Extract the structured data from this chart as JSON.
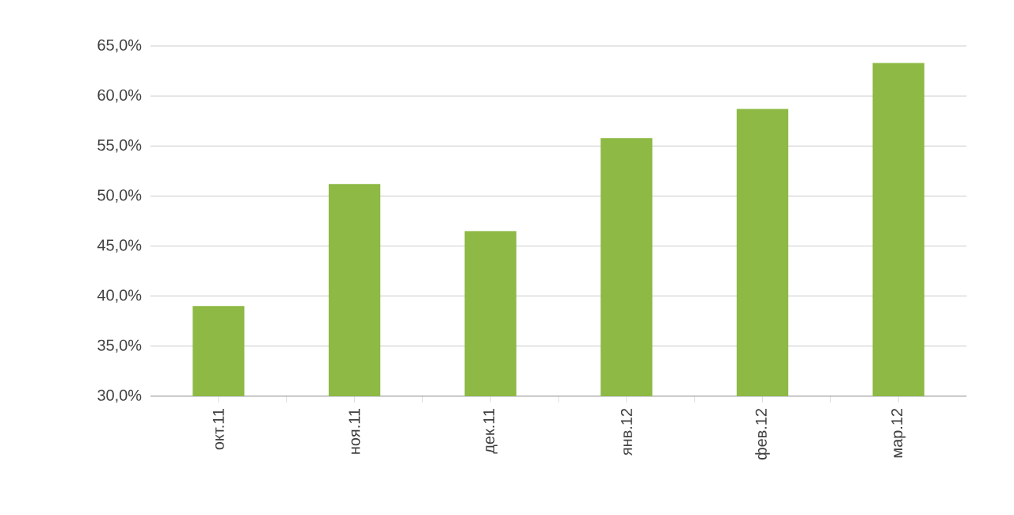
{
  "chart_data": {
    "type": "bar",
    "categories": [
      "окт.11",
      "ноя.11",
      "дек.11",
      "янв.12",
      "фев.12",
      "мар.12"
    ],
    "values": [
      39.0,
      51.2,
      46.5,
      55.8,
      58.7,
      63.3
    ],
    "color": "#8db944",
    "ylim": [
      30,
      65
    ],
    "yticks": [
      {
        "value": 30,
        "label": "30,0%"
      },
      {
        "value": 35,
        "label": "35,0%"
      },
      {
        "value": 40,
        "label": "40,0%"
      },
      {
        "value": 45,
        "label": "45,0%"
      },
      {
        "value": 50,
        "label": "50,0%"
      },
      {
        "value": 55,
        "label": "55,0%"
      },
      {
        "value": 60,
        "label": "60,0%"
      },
      {
        "value": 65,
        "label": "65,0%"
      }
    ],
    "grid": "y"
  }
}
